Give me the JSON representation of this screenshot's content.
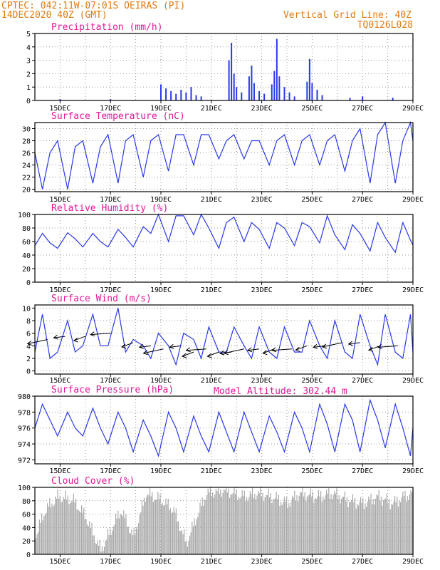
{
  "header": {
    "line1_left": "CPTEC:  042:11W-07:01S  OEIRAS (PI)",
    "line2_left": "14DEC2020 40Z (GMT)",
    "line1_right": "Vertical Grid Line: 40Z",
    "line2_right": "TQ0126L028"
  },
  "colors": {
    "accent": "#e07a10",
    "title": "#e0189a",
    "series": "#2a38e8",
    "cloud": "#a9a9a9"
  },
  "x_ticks": [
    "15DEC",
    "17DEC",
    "19DEC",
    "21DEC",
    "23DEC",
    "25DEC",
    "27DEC",
    "29DEC"
  ],
  "model_altitude": "Model Altitude: 302.44 m",
  "chart_data": [
    {
      "id": "precip",
      "type": "bar",
      "title": "Precipitation (mm/h)",
      "ylim": [
        0,
        5
      ],
      "yticks": [
        "0",
        "1",
        "2",
        "3",
        "4",
        "5"
      ],
      "x_range_days": [
        14.0,
        29.0
      ],
      "points": [
        [
          19.0,
          1.2
        ],
        [
          19.2,
          0.9
        ],
        [
          19.4,
          0.7
        ],
        [
          19.6,
          0.5
        ],
        [
          19.8,
          0.8
        ],
        [
          20.0,
          0.6
        ],
        [
          20.2,
          1.0
        ],
        [
          20.4,
          0.4
        ],
        [
          20.6,
          0.3
        ],
        [
          21.7,
          3.0
        ],
        [
          21.8,
          4.3
        ],
        [
          21.9,
          2.0
        ],
        [
          22.0,
          1.0
        ],
        [
          22.2,
          0.6
        ],
        [
          22.5,
          1.8
        ],
        [
          22.6,
          2.6
        ],
        [
          22.7,
          1.3
        ],
        [
          22.9,
          0.7
        ],
        [
          23.1,
          0.5
        ],
        [
          23.4,
          1.2
        ],
        [
          23.5,
          2.2
        ],
        [
          23.6,
          4.6
        ],
        [
          23.7,
          1.8
        ],
        [
          23.9,
          1.0
        ],
        [
          24.1,
          0.6
        ],
        [
          24.3,
          0.3
        ],
        [
          24.8,
          1.4
        ],
        [
          24.9,
          3.1
        ],
        [
          25.0,
          1.3
        ],
        [
          25.2,
          0.8
        ],
        [
          25.4,
          0.4
        ],
        [
          26.5,
          0.2
        ],
        [
          27.0,
          0.3
        ],
        [
          28.2,
          0.2
        ],
        [
          15.0,
          0.1
        ],
        [
          17.0,
          0.1
        ]
      ]
    },
    {
      "id": "temp",
      "type": "line",
      "title": "Surface Temperature (nC)",
      "ylim": [
        19.6,
        31
      ],
      "yticks": [
        "20",
        "22",
        "24",
        "26",
        "28",
        "30"
      ],
      "x": [
        14.0,
        14.3,
        14.6,
        14.9,
        15.3,
        15.6,
        15.9,
        16.3,
        16.6,
        16.9,
        17.3,
        17.6,
        17.9,
        18.3,
        18.6,
        18.9,
        19.3,
        19.6,
        19.9,
        20.3,
        20.6,
        20.9,
        21.3,
        21.6,
        21.9,
        22.3,
        22.6,
        22.9,
        23.3,
        23.6,
        23.9,
        24.3,
        24.6,
        24.9,
        25.3,
        25.6,
        25.9,
        26.3,
        26.6,
        26.9,
        27.3,
        27.6,
        27.9,
        28.3,
        28.6,
        28.9,
        29.0
      ],
      "values": [
        26,
        20,
        26,
        28,
        20,
        27,
        28,
        21,
        27,
        29,
        21,
        28,
        29,
        22,
        28,
        29,
        23,
        29,
        29,
        24,
        29,
        29,
        25,
        28,
        29,
        25,
        28,
        28,
        24,
        28,
        29,
        24,
        28,
        29,
        24,
        28,
        29,
        23,
        28,
        30,
        21,
        29,
        31,
        21,
        28,
        31,
        28
      ]
    },
    {
      "id": "rh",
      "type": "line",
      "title": "Relative Humidity (%)",
      "ylim": [
        0,
        100
      ],
      "yticks": [
        "0",
        "20",
        "40",
        "60",
        "80",
        "100"
      ],
      "x": [
        14.0,
        14.3,
        14.6,
        14.9,
        15.3,
        15.6,
        15.9,
        16.3,
        16.6,
        16.9,
        17.3,
        17.6,
        17.9,
        18.3,
        18.6,
        18.9,
        19.3,
        19.6,
        19.9,
        20.3,
        20.6,
        20.9,
        21.3,
        21.6,
        21.9,
        22.3,
        22.6,
        22.9,
        23.3,
        23.6,
        23.9,
        24.3,
        24.6,
        24.9,
        25.3,
        25.6,
        25.9,
        26.3,
        26.6,
        26.9,
        27.3,
        27.6,
        27.9,
        28.3,
        28.6,
        28.9,
        29.0
      ],
      "values": [
        54,
        72,
        58,
        50,
        73,
        64,
        52,
        72,
        60,
        52,
        78,
        66,
        52,
        82,
        72,
        100,
        60,
        98,
        98,
        70,
        100,
        80,
        50,
        88,
        96,
        60,
        88,
        78,
        50,
        88,
        80,
        54,
        88,
        82,
        58,
        98,
        70,
        48,
        85,
        72,
        46,
        88,
        66,
        44,
        88,
        62,
        55
      ]
    },
    {
      "id": "wind",
      "type": "line",
      "title": "Surface Wind (m/s)",
      "ylim": [
        -0.5,
        10.5
      ],
      "yticks": [
        "0",
        "2",
        "4",
        "6",
        "8",
        "10"
      ],
      "x": [
        14.0,
        14.3,
        14.6,
        14.9,
        15.3,
        15.6,
        15.9,
        16.3,
        16.6,
        16.9,
        17.3,
        17.6,
        17.9,
        18.3,
        18.6,
        18.9,
        19.3,
        19.6,
        19.9,
        20.3,
        20.6,
        20.9,
        21.3,
        21.6,
        21.9,
        22.3,
        22.6,
        22.9,
        23.3,
        23.6,
        23.9,
        24.3,
        24.6,
        24.9,
        25.3,
        25.6,
        25.9,
        26.3,
        26.6,
        26.9,
        27.3,
        27.6,
        27.9,
        28.3,
        28.6,
        28.9,
        29.0
      ],
      "values": [
        3,
        9,
        2,
        3,
        8,
        3,
        4,
        9,
        4,
        4,
        10,
        3,
        5,
        4,
        2,
        6,
        4,
        1,
        6,
        5,
        2,
        7,
        3,
        3,
        7,
        4,
        2,
        7,
        3,
        2,
        7,
        3,
        3,
        8,
        4,
        2,
        8,
        3,
        2,
        9,
        4,
        1,
        9,
        3,
        2,
        9,
        3
      ],
      "arrows": [
        [
          14.5,
          5
        ],
        [
          15.2,
          5.5
        ],
        [
          16.0,
          5.5
        ],
        [
          17.0,
          6
        ],
        [
          17.9,
          4.5
        ],
        [
          18.6,
          4
        ],
        [
          19.1,
          3.5
        ],
        [
          19.8,
          4
        ],
        [
          20.3,
          3
        ],
        [
          20.8,
          3.5
        ],
        [
          21.3,
          3
        ],
        [
          21.8,
          3
        ],
        [
          22.3,
          3.5
        ],
        [
          22.9,
          3.5
        ],
        [
          23.5,
          3.5
        ],
        [
          24.2,
          3.5
        ],
        [
          24.8,
          4
        ],
        [
          25.5,
          4
        ],
        [
          26.2,
          4.5
        ],
        [
          26.9,
          4.5
        ],
        [
          27.7,
          4
        ],
        [
          28.4,
          4
        ]
      ]
    },
    {
      "id": "press",
      "type": "line",
      "title": "Surface Pressure (hPa)",
      "ylim": [
        971.5,
        980
      ],
      "yticks": [
        "972",
        "974",
        "976",
        "978",
        "980"
      ],
      "x": [
        14.0,
        14.3,
        14.6,
        14.9,
        15.3,
        15.6,
        15.9,
        16.3,
        16.6,
        16.9,
        17.3,
        17.6,
        17.9,
        18.3,
        18.6,
        18.9,
        19.3,
        19.6,
        19.9,
        20.3,
        20.6,
        20.9,
        21.3,
        21.6,
        21.9,
        22.3,
        22.6,
        22.9,
        23.3,
        23.6,
        23.9,
        24.3,
        24.6,
        24.9,
        25.3,
        25.6,
        25.9,
        26.3,
        26.6,
        26.9,
        27.3,
        27.6,
        27.9,
        28.3,
        28.6,
        28.9,
        29.0
      ],
      "values": [
        976,
        979,
        977,
        975,
        978,
        976,
        975,
        978.5,
        976,
        974,
        978,
        976,
        973,
        977,
        975,
        972.5,
        978,
        976,
        973,
        977.5,
        975,
        973,
        978,
        975.5,
        973,
        978,
        975.5,
        973,
        977.5,
        975.5,
        973,
        978,
        976,
        973,
        979,
        976.5,
        973,
        979,
        977,
        973,
        979.5,
        977,
        973.5,
        979,
        976,
        972.5,
        976
      ]
    },
    {
      "id": "cloud",
      "type": "bar",
      "title": "Cloud Cover (%)",
      "ylim": [
        0,
        100
      ],
      "yticks": [
        "0",
        "20",
        "40",
        "60",
        "80",
        "100"
      ],
      "x_range_days": [
        14.0,
        29.0
      ],
      "profile": [
        [
          14.0,
          30
        ],
        [
          14.4,
          70
        ],
        [
          14.9,
          90
        ],
        [
          15.5,
          85
        ],
        [
          16.0,
          60
        ],
        [
          16.6,
          10
        ],
        [
          17.0,
          40
        ],
        [
          17.4,
          70
        ],
        [
          17.9,
          30
        ],
        [
          18.4,
          95
        ],
        [
          19.0,
          85
        ],
        [
          19.5,
          70
        ],
        [
          20.0,
          20
        ],
        [
          20.4,
          60
        ],
        [
          20.8,
          95
        ],
        [
          21.5,
          100
        ],
        [
          22.3,
          90
        ],
        [
          22.8,
          95
        ],
        [
          23.4,
          90
        ],
        [
          24.0,
          80
        ],
        [
          24.5,
          95
        ],
        [
          25.2,
          90
        ],
        [
          25.8,
          95
        ],
        [
          26.4,
          85
        ],
        [
          27.0,
          80
        ],
        [
          27.6,
          90
        ],
        [
          28.2,
          80
        ],
        [
          28.6,
          90
        ],
        [
          29.0,
          95
        ]
      ]
    }
  ]
}
